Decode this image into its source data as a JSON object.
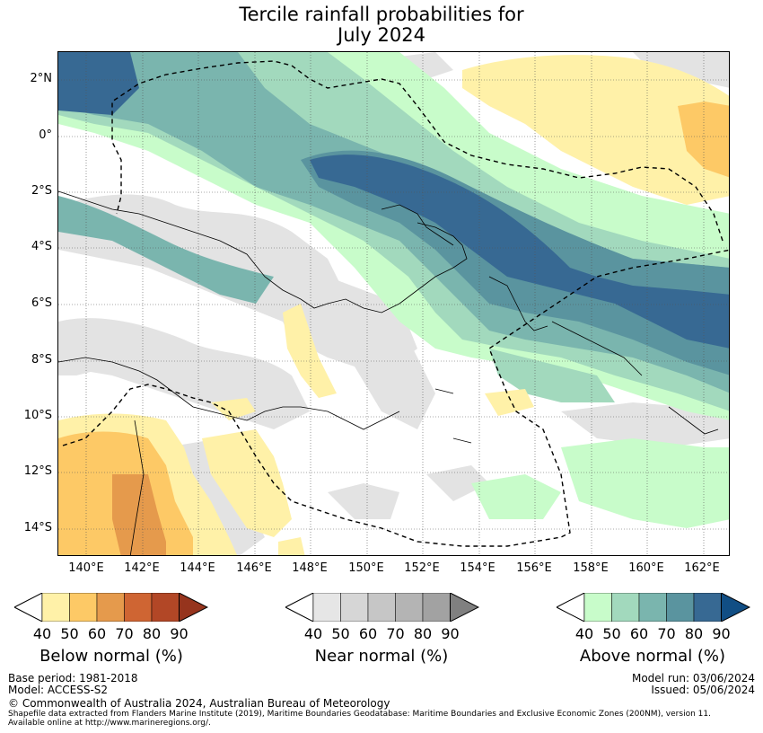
{
  "title": {
    "line1": "Tercile rainfall probabilities for",
    "line2": "July 2024"
  },
  "lat_labels": [
    "2°N",
    "0°",
    "2°S",
    "4°S",
    "6°S",
    "8°S",
    "10°S",
    "12°S",
    "14°S"
  ],
  "lon_labels": [
    "140°E",
    "142°E",
    "144°E",
    "146°E",
    "148°E",
    "150°E",
    "152°E",
    "154°E",
    "156°E",
    "158°E",
    "160°E",
    "162°E"
  ],
  "colorbars": {
    "below": {
      "label": "Below normal (%)",
      "ticks": [
        "40",
        "50",
        "60",
        "70",
        "80",
        "90"
      ],
      "colors": [
        "#fff1a8",
        "#fdc966",
        "#e59a4c",
        "#cf6533",
        "#b24726",
        "#96341d"
      ]
    },
    "near": {
      "label": "Near normal (%)",
      "ticks": [
        "40",
        "50",
        "60",
        "70",
        "80",
        "90"
      ],
      "colors": [
        "#e6e6e6",
        "#d6d6d6",
        "#c6c6c6",
        "#b4b4b4",
        "#a2a2a2",
        "#808080"
      ]
    },
    "above": {
      "label": "Above normal (%)",
      "ticks": [
        "40",
        "50",
        "60",
        "70",
        "80",
        "90"
      ],
      "colors": [
        "#c8fcca",
        "#a2d9bd",
        "#7ab5ae",
        "#5a949f",
        "#376993",
        "#114e84"
      ]
    }
  },
  "footer": {
    "base_period": "Base period: 1981-2018",
    "model": "Model: ACCESS-S2",
    "model_run": "Model run: 03/06/2024",
    "issued": "Issued: 05/06/2024",
    "copyright": "© Commonwealth of Australia 2024, Australian Bureau of Meteorology",
    "shapefile": "Shapefile data extracted from Flanders Marine Institute (2019), Maritime Boundaries Geodatabase: Maritime Boundaries and Exclusive Economic Zones (200NM), version 11.",
    "available": "Available online at http://www.marineregions.org/."
  }
}
